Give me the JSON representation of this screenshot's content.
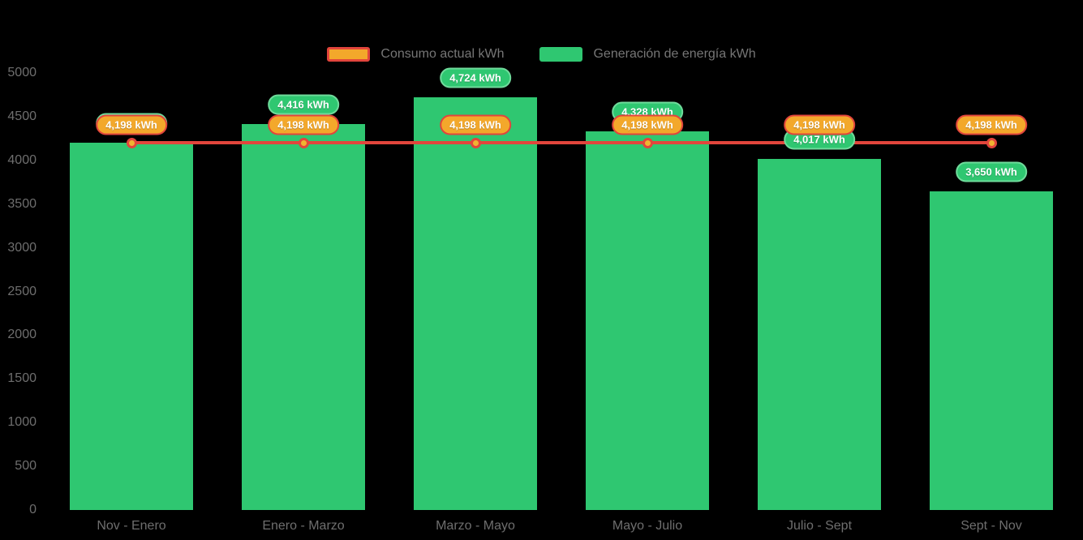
{
  "legend": {
    "items": [
      {
        "label": "Consumo actual kWh",
        "series_type": "line",
        "swatch_fill": "#F3A82B",
        "swatch_border": "#E2453C"
      },
      {
        "label": "Generación de energía kWh",
        "series_type": "bar",
        "swatch_fill": "#2FC771"
      }
    ]
  },
  "chart_data": {
    "type": "bar",
    "categories": [
      "Nov - Enero",
      "Enero - Marzo",
      "Marzo - Mayo",
      "Mayo - Julio",
      "Julio - Sept",
      "Sept - Nov"
    ],
    "series": [
      {
        "name": "Consumo actual kWh",
        "type": "line",
        "color": "#E2453C",
        "marker_fill": "#F0B431",
        "values": [
          4198,
          4198,
          4198,
          4198,
          4198,
          4198
        ],
        "labels": [
          "4,198 kWh",
          "4,198 kWh",
          "4,198 kWh",
          "4,198 kWh",
          "4,198 kWh",
          "4,198 kWh"
        ],
        "label_bg": "#F3A82B",
        "label_border": "#E2453C"
      },
      {
        "name": "Generación de energía kWh",
        "type": "bar",
        "color": "#2FC771",
        "values": [
          4198,
          4416,
          4724,
          4328,
          4017,
          3650
        ],
        "labels": [
          "4,198 kWh",
          "4,416 kWh",
          "4,724 kWh",
          "4.328 kWh",
          "4,017 kWh",
          "3,650 kWh"
        ],
        "label_bg": "#2FC771",
        "label_border": "#6FDB9B"
      }
    ],
    "yticks": [
      0,
      500,
      1000,
      1500,
      2000,
      2500,
      3000,
      3500,
      4000,
      4500,
      5000
    ],
    "ylim": [
      0,
      5000
    ],
    "grid": false,
    "legend_position": "top",
    "background": "#000000",
    "text_color_axis": "#6E6E6E",
    "text_color_legend": "#767676"
  }
}
